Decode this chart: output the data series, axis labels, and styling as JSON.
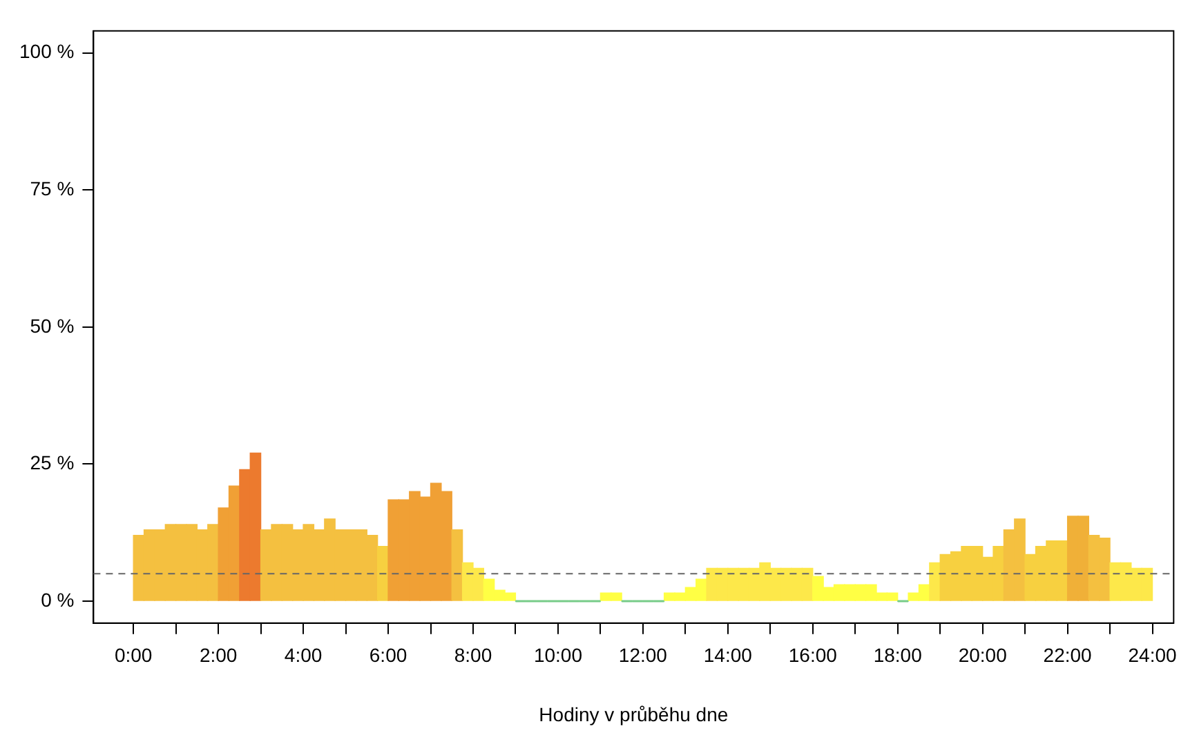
{
  "chart_data": {
    "type": "bar",
    "xlabel": "Hodiny v průběhu dne",
    "x": [
      0.125,
      0.375,
      0.625,
      0.875,
      1.125,
      1.375,
      1.625,
      1.875,
      2.125,
      2.375,
      2.625,
      2.875,
      3.125,
      3.375,
      3.625,
      3.875,
      4.125,
      4.375,
      4.625,
      4.875,
      5.125,
      5.375,
      5.625,
      5.875,
      6.125,
      6.375,
      6.625,
      6.875,
      7.125,
      7.375,
      7.625,
      7.875,
      8.125,
      8.375,
      8.625,
      8.875,
      9.125,
      9.375,
      9.625,
      9.875,
      10.125,
      10.375,
      10.625,
      10.875,
      11.125,
      11.375,
      11.625,
      11.875,
      12.125,
      12.375,
      12.625,
      12.875,
      13.125,
      13.375,
      13.625,
      13.875,
      14.125,
      14.375,
      14.625,
      14.875,
      15.125,
      15.375,
      15.625,
      15.875,
      16.125,
      16.375,
      16.625,
      16.875,
      17.125,
      17.375,
      17.625,
      17.875,
      18.125,
      18.375,
      18.625,
      18.875,
      19.125,
      19.375,
      19.625,
      19.875,
      20.125,
      20.375,
      20.625,
      20.875,
      21.125,
      21.375,
      21.625,
      21.875,
      22.125,
      22.375,
      22.625,
      22.875,
      23.125,
      23.375,
      23.625,
      23.875
    ],
    "values": [
      12,
      13,
      13,
      14,
      14,
      14,
      13,
      14,
      17,
      21,
      24,
      27,
      13,
      14,
      14,
      13,
      14,
      13,
      15,
      13,
      13,
      13,
      12,
      10,
      18.5,
      18.5,
      20,
      19,
      21.5,
      20,
      13,
      7,
      6,
      4,
      2,
      1.5,
      0,
      0,
      0,
      0,
      0,
      0,
      0,
      0,
      1.5,
      1.5,
      0,
      0,
      0,
      0,
      1.5,
      1.5,
      2.5,
      4,
      6,
      6,
      6,
      6,
      6,
      7,
      6,
      6,
      6,
      6,
      4.5,
      2.5,
      3,
      3,
      3,
      3,
      1.5,
      1.5,
      0,
      1.5,
      3,
      7,
      8.5,
      9,
      10,
      10,
      8,
      10,
      13,
      15,
      8.5,
      10,
      11,
      11,
      15.5,
      15.5,
      12,
      11.5,
      7,
      7,
      6,
      6
    ],
    "colors": [
      "#f4c040",
      "#f4c040",
      "#f4c040",
      "#f4c040",
      "#f4c040",
      "#f4c040",
      "#f4c040",
      "#f4c040",
      "#f0a035",
      "#f0a035",
      "#ec7a2e",
      "#ec7a2e",
      "#f4c040",
      "#f4c040",
      "#f4c040",
      "#f4c040",
      "#f4c040",
      "#f4c040",
      "#f4c040",
      "#f4c040",
      "#f4c040",
      "#f4c040",
      "#f4c040",
      "#f7d040",
      "#f0a035",
      "#f0a035",
      "#f0a035",
      "#f0a035",
      "#f0a035",
      "#f0a035",
      "#f4c040",
      "#fde84a",
      "#fde84a",
      "#ffff44",
      "#ffff44",
      "#ffff44",
      "#77cc88",
      "#77cc88",
      "#77cc88",
      "#77cc88",
      "#77cc88",
      "#77cc88",
      "#77cc88",
      "#77cc88",
      "#ffff44",
      "#ffff44",
      "#77cc88",
      "#77cc88",
      "#77cc88",
      "#77cc88",
      "#ffff44",
      "#ffff44",
      "#ffff44",
      "#ffff44",
      "#fde84a",
      "#fde84a",
      "#fde84a",
      "#fde84a",
      "#fde84a",
      "#fde84a",
      "#fde84a",
      "#fde84a",
      "#fde84a",
      "#fde84a",
      "#ffff44",
      "#ffff44",
      "#ffff44",
      "#ffff44",
      "#ffff44",
      "#ffff44",
      "#ffff44",
      "#ffff44",
      "#77cc88",
      "#ffff44",
      "#ffff44",
      "#fde84a",
      "#f7d040",
      "#f7d040",
      "#f7d040",
      "#f7d040",
      "#f7d040",
      "#f7d040",
      "#f4c040",
      "#f4c040",
      "#f7d040",
      "#f7d040",
      "#f7d040",
      "#f7d040",
      "#f0b038",
      "#f0b038",
      "#f4c040",
      "#f4c040",
      "#fde84a",
      "#fde84a",
      "#fde84a",
      "#fde84a"
    ],
    "xlim": [
      -0.94,
      24.5
    ],
    "xticks": [
      {
        "value": 0,
        "label": "0:00"
      },
      {
        "value": 1,
        "label": null
      },
      {
        "value": 2,
        "label": "2:00"
      },
      {
        "value": 3,
        "label": null
      },
      {
        "value": 4,
        "label": "4:00"
      },
      {
        "value": 5,
        "label": null
      },
      {
        "value": 6,
        "label": "6:00"
      },
      {
        "value": 7,
        "label": null
      },
      {
        "value": 8,
        "label": "8:00"
      },
      {
        "value": 9,
        "label": null
      },
      {
        "value": 10,
        "label": "10:00"
      },
      {
        "value": 11,
        "label": null
      },
      {
        "value": 12,
        "label": "12:00"
      },
      {
        "value": 13,
        "label": null
      },
      {
        "value": 14,
        "label": "14:00"
      },
      {
        "value": 15,
        "label": null
      },
      {
        "value": 16,
        "label": "16:00"
      },
      {
        "value": 17,
        "label": null
      },
      {
        "value": 18,
        "label": "18:00"
      },
      {
        "value": 19,
        "label": null
      },
      {
        "value": 20,
        "label": "20:00"
      },
      {
        "value": 21,
        "label": null
      },
      {
        "value": 22,
        "label": "22:00"
      },
      {
        "value": 23,
        "label": null
      },
      {
        "value": 24,
        "label": "24:00"
      }
    ],
    "ylim": [
      -4,
      104
    ],
    "yticks": [
      {
        "value": 0,
        "label": "0 %"
      },
      {
        "value": 25,
        "label": "25 %"
      },
      {
        "value": 50,
        "label": "50 %"
      },
      {
        "value": 75,
        "label": "75 %"
      },
      {
        "value": 100,
        "label": "100 %"
      }
    ],
    "ref_lines": [
      {
        "axis": "y",
        "value": 5,
        "color": "#666666",
        "line_style": "dashed"
      }
    ],
    "grid": false,
    "legend": false
  }
}
